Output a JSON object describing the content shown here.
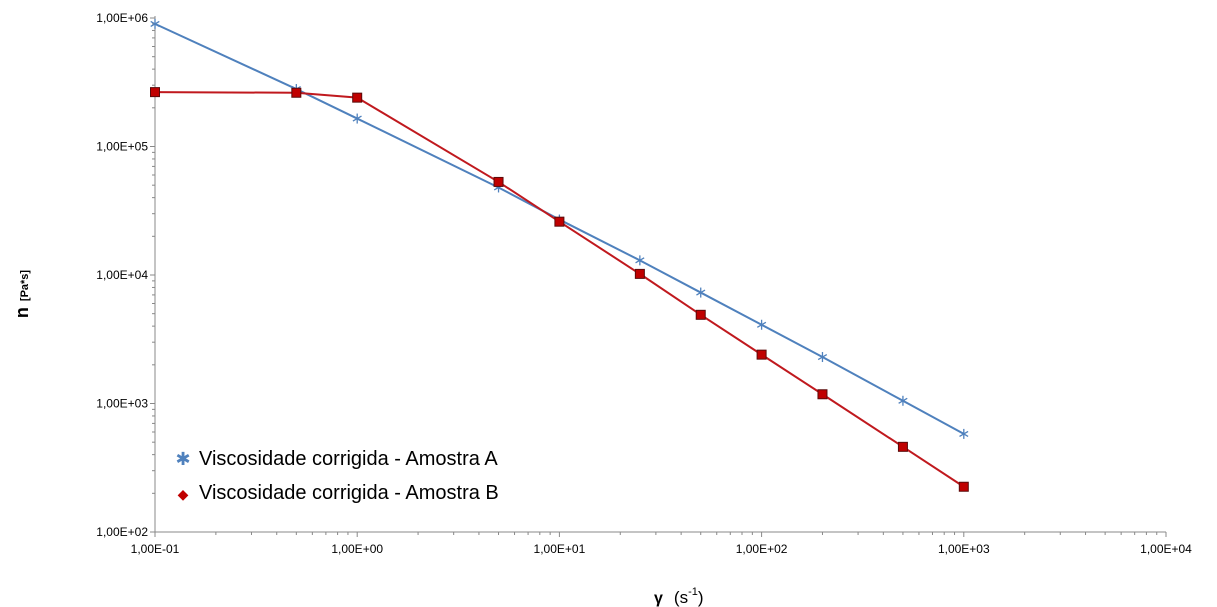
{
  "chart_data": {
    "type": "line",
    "x_scale": "log",
    "y_scale": "log",
    "xlim": [
      0.1,
      10000
    ],
    "ylim": [
      100,
      1000000
    ],
    "xlabel": {
      "symbol": "γ",
      "unit": "(s",
      "exponent": "-1",
      "close": ")"
    },
    "ylabel": {
      "symbol": "n",
      "unit": "[Pa*s]"
    },
    "x_ticks": [
      {
        "value": 0.1,
        "label": "1,00E-01"
      },
      {
        "value": 1,
        "label": "1,00E+00"
      },
      {
        "value": 10,
        "label": "1,00E+01"
      },
      {
        "value": 100,
        "label": "1,00E+02"
      },
      {
        "value": 1000,
        "label": "1,00E+03"
      },
      {
        "value": 10000,
        "label": "1,00E+04"
      }
    ],
    "y_ticks": [
      {
        "value": 100,
        "label": "1,00E+02"
      },
      {
        "value": 1000,
        "label": "1,00E+03"
      },
      {
        "value": 10000,
        "label": "1,00E+04"
      },
      {
        "value": 100000,
        "label": "1,00E+05"
      },
      {
        "value": 1000000,
        "label": "1,00E+06"
      }
    ],
    "legend_position": "bottom-left",
    "series": [
      {
        "name": "Viscosidade corrigida - Amostra A",
        "color": "#4f81bd",
        "marker": "star",
        "legend_marker": "✱",
        "points": [
          {
            "x": 0.1,
            "y": 900000
          },
          {
            "x": 0.5,
            "y": 280000
          },
          {
            "x": 1,
            "y": 165000
          },
          {
            "x": 5,
            "y": 48000
          },
          {
            "x": 10,
            "y": 27000
          },
          {
            "x": 25,
            "y": 13000
          },
          {
            "x": 50,
            "y": 7300
          },
          {
            "x": 100,
            "y": 4100
          },
          {
            "x": 200,
            "y": 2300
          },
          {
            "x": 500,
            "y": 1050
          },
          {
            "x": 1000,
            "y": 580
          }
        ]
      },
      {
        "name": "Viscosidade corrigida - Amostra B",
        "color": "#c0191e",
        "marker": "square",
        "legend_marker": "◆",
        "points": [
          {
            "x": 0.1,
            "y": 265000
          },
          {
            "x": 0.5,
            "y": 262000
          },
          {
            "x": 1,
            "y": 240000
          },
          {
            "x": 5,
            "y": 53000
          },
          {
            "x": 10,
            "y": 26000
          },
          {
            "x": 25,
            "y": 10200
          },
          {
            "x": 50,
            "y": 4900
          },
          {
            "x": 100,
            "y": 2400
          },
          {
            "x": 200,
            "y": 1180
          },
          {
            "x": 500,
            "y": 460
          },
          {
            "x": 1000,
            "y": 225
          }
        ]
      }
    ]
  }
}
